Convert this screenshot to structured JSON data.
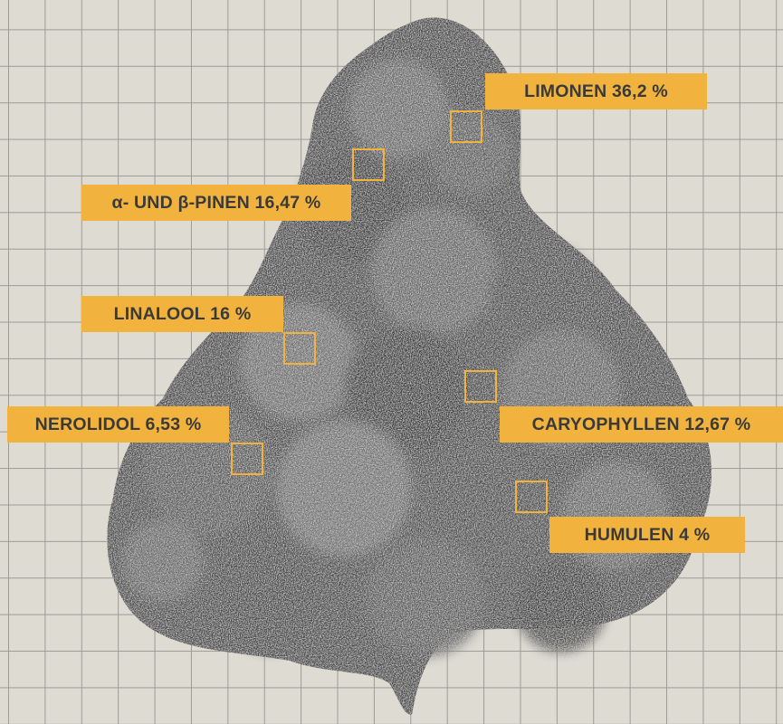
{
  "accent_color": "#f1b23e",
  "text_color": "#3a3a3a",
  "background": {
    "grid": true,
    "color": "#dedbd3",
    "grid_color": "#9e9b95"
  },
  "image": {
    "subject": "cannabis-bud-photo",
    "style": "monochrome"
  },
  "labels": {
    "limonen": "LIMONEN 36,2 %",
    "pinen": "α- UND β-PINEN 16,47 %",
    "linalool": "LINALOOL 16 %",
    "nerolidol": "NEROLIDOL 6,53 %",
    "caryophyllen": "CARYOPHYLLEN 12,67 %",
    "humulen": "HUMULEN 4 %"
  }
}
